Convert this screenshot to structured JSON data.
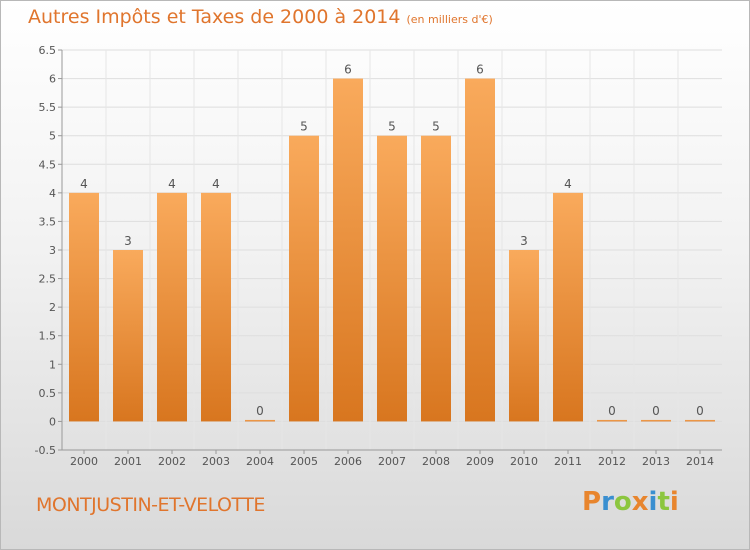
{
  "title": "Autres Impôts et Taxes de 2000 à 2014",
  "subtitle": "(en milliers d'€)",
  "place": "MONTJUSTIN-ET-VELOTTE",
  "logo": {
    "letters": [
      "P",
      "r",
      "o",
      "x",
      "i",
      "t",
      "i"
    ],
    "colors": [
      "#e8852d",
      "#3a8fd0",
      "#8cc63f",
      "#e8852d",
      "#3a8fd0",
      "#8cc63f",
      "#e8852d"
    ]
  },
  "colors": {
    "accent": "#e0752d",
    "bar_light": "#f9aa5c",
    "bar_dark": "#d8761f"
  },
  "chart_data": {
    "type": "bar",
    "title": "Autres Impôts et Taxes de 2000 à 2014",
    "subtitle": "(en milliers d'€)",
    "categories": [
      "2000",
      "2001",
      "2002",
      "2003",
      "2004",
      "2005",
      "2006",
      "2007",
      "2008",
      "2009",
      "2010",
      "2011",
      "2012",
      "2013",
      "2014"
    ],
    "values": [
      4,
      3,
      4,
      4,
      0,
      5,
      6,
      5,
      5,
      6,
      3,
      4,
      0,
      0,
      0
    ],
    "labels": [
      "4",
      "3",
      "4",
      "4",
      "0",
      "5",
      "6",
      "5",
      "5",
      "6",
      "3",
      "4",
      "0",
      "0",
      "0"
    ],
    "yticks": [
      "-0.5",
      "0",
      "0.5",
      "1",
      "1.5",
      "2",
      "2.5",
      "3",
      "3.5",
      "4",
      "4.5",
      "5",
      "5.5",
      "6",
      "6.5"
    ],
    "ylim": [
      -0.5,
      6.5
    ],
    "grid": true
  }
}
